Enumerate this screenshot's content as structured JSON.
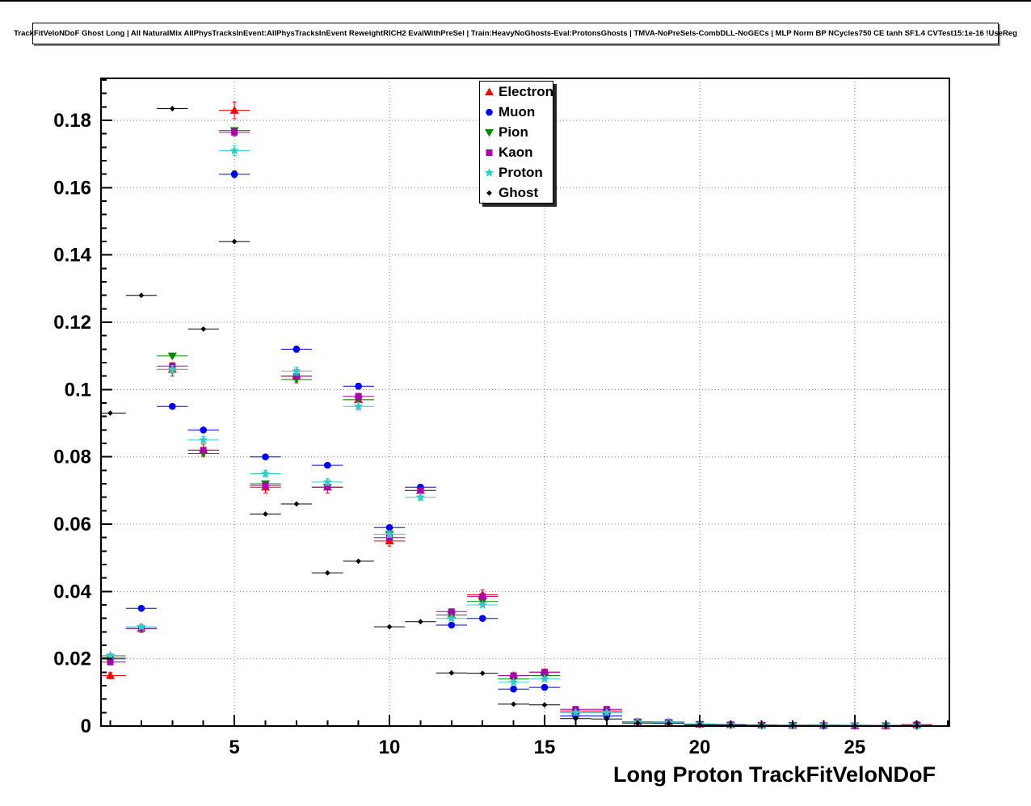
{
  "title": "TrackFitVeloNDoF Ghost Long | All NaturalMix AllPhysTracksInEvent:AllPhysTracksInEvent ReweightRICH2 EvalWithPreSel | Train:HeavyNoGhosts-Eval:ProtonsGhosts | TMVA-NoPreSels-CombDLL-NoGECs | MLP Norm BP NCycles750 CE tanh SF1.4 CVTest15:1e-16 !UseReg",
  "chart_data": {
    "type": "scatter",
    "title": "TrackFitVeloNDoF Ghost Long",
    "xlabel": "Long Proton TrackFitVeloNDoF",
    "ylabel": "",
    "xlim": [
      0.7,
      28.05
    ],
    "ylim": [
      0,
      0.1925
    ],
    "grid": true,
    "legend_position": "top-center",
    "bin_width": 1,
    "x_ticks": [
      5,
      10,
      15,
      20,
      25
    ],
    "y_ticks": {
      "values": [
        0,
        0.02,
        0.04,
        0.06,
        0.08,
        0.1,
        0.12,
        0.14,
        0.16,
        0.18
      ],
      "labels": [
        "0",
        "0.02",
        "0.04",
        "0.06",
        "0.08",
        "0.1",
        "0.12",
        "0.14",
        "0.16",
        "0.18"
      ]
    },
    "x": [
      1,
      2,
      3,
      4,
      5,
      6,
      7,
      8,
      9,
      10,
      11,
      12,
      13,
      14,
      15,
      16,
      17,
      18,
      19,
      20,
      21,
      22,
      23,
      24,
      25,
      26,
      27
    ],
    "series": [
      {
        "name": "Electron",
        "color": "#ff0000",
        "marker": "triangle-up",
        "values": [
          0.015,
          0.029,
          0.106,
          0.082,
          0.183,
          0.071,
          0.104,
          0.071,
          0.097,
          0.055,
          0.07,
          0.033,
          0.039,
          0.015,
          0.016,
          0.0045,
          0.0045,
          0.0012,
          0.0012,
          0.0005,
          0.0004,
          0.0003,
          0.0002,
          0.0002,
          0.0001,
          0.0001,
          0.0004
        ],
        "yerr": [
          0.0009,
          0.0012,
          0.002,
          0.0018,
          0.0025,
          0.0017,
          0.002,
          0.0017,
          0.0019,
          0.0015,
          0.0017,
          0.0012,
          0.0015,
          0.0008,
          0.0009,
          0.0005,
          0.0005,
          0.0003,
          0.0003,
          0.0002,
          0.0002,
          0.0001,
          0.0001,
          0.0001,
          0.0001,
          0.0001,
          0.0003
        ]
      },
      {
        "name": "Muon",
        "color": "#0000ff",
        "marker": "circle",
        "values": [
          0.02,
          0.035,
          0.095,
          0.088,
          0.164,
          0.08,
          0.112,
          0.0775,
          0.101,
          0.059,
          0.071,
          0.03,
          0.032,
          0.011,
          0.0115,
          0.003,
          0.003,
          0.0012,
          0.0012,
          0.0006,
          0.0004,
          0.0003,
          0.0002,
          0.0001,
          0.0001,
          0.0001,
          0.0001
        ],
        "yerr": [
          0.0004,
          0.0005,
          0.0008,
          0.0008,
          0.001,
          0.0008,
          0.0009,
          0.0008,
          0.0009,
          0.0007,
          0.0008,
          0.0005,
          0.0005,
          0.0003,
          0.0003,
          0.0002,
          0.0002,
          0.0001,
          0.0001,
          0.0001,
          0.0001,
          0.0001,
          0.0001,
          0.0001,
          0.0001,
          0.0001,
          0.0001
        ]
      },
      {
        "name": "Pion",
        "color": "#008800",
        "marker": "triangle-down",
        "values": [
          0.0205,
          0.029,
          0.11,
          0.081,
          0.177,
          0.072,
          0.103,
          0.071,
          0.097,
          0.057,
          0.07,
          0.033,
          0.037,
          0.014,
          0.015,
          0.004,
          0.004,
          0.0012,
          0.001,
          0.0005,
          0.0003,
          0.0002,
          0.0002,
          0.0001,
          0.0001,
          0.0001,
          0.0001
        ],
        "yerr": [
          0.0003,
          0.0003,
          0.0005,
          0.0005,
          0.0006,
          0.0005,
          0.0005,
          0.0005,
          0.0005,
          0.0004,
          0.0004,
          0.0003,
          0.0003,
          0.0002,
          0.0002,
          0.0001,
          0.0001,
          0.0001,
          0.0001,
          0.0001,
          0.0001,
          0.0001,
          0.0001,
          0.0001,
          0.0001,
          0.0001,
          0.0001
        ]
      },
      {
        "name": "Kaon",
        "color": "#aa00aa",
        "marker": "square",
        "values": [
          0.019,
          0.029,
          0.107,
          0.082,
          0.1765,
          0.0715,
          0.104,
          0.071,
          0.098,
          0.056,
          0.07,
          0.034,
          0.0385,
          0.015,
          0.016,
          0.005,
          0.005,
          0.0013,
          0.0011,
          0.0005,
          0.0004,
          0.0003,
          0.0002,
          0.0002,
          0.0001,
          0.0001,
          0.0004
        ],
        "yerr": [
          0.0005,
          0.0006,
          0.0009,
          0.0008,
          0.0011,
          0.0008,
          0.0009,
          0.0008,
          0.0009,
          0.0007,
          0.0008,
          0.0006,
          0.0007,
          0.0004,
          0.0005,
          0.0003,
          0.0003,
          0.0002,
          0.0002,
          0.0001,
          0.0001,
          0.0001,
          0.0001,
          0.0001,
          0.0001,
          0.0001,
          0.0002
        ]
      },
      {
        "name": "Proton",
        "color": "#33cccc",
        "marker": "star",
        "values": [
          0.021,
          0.0295,
          0.106,
          0.085,
          0.171,
          0.075,
          0.1055,
          0.0725,
          0.095,
          0.057,
          0.068,
          0.032,
          0.036,
          0.013,
          0.014,
          0.004,
          0.004,
          0.0012,
          0.0011,
          0.0006,
          0.0004,
          0.0003,
          0.0003,
          0.0004,
          0.0004,
          0.0003,
          0.0001
        ],
        "yerr": [
          0.0006,
          0.0007,
          0.0012,
          0.0011,
          0.0014,
          0.001,
          0.0012,
          0.001,
          0.0011,
          0.0009,
          0.001,
          0.0007,
          0.0008,
          0.0005,
          0.0005,
          0.0003,
          0.0003,
          0.0002,
          0.0002,
          0.0001,
          0.0001,
          0.0001,
          0.0001,
          0.0002,
          0.0002,
          0.0002,
          0.0001
        ]
      },
      {
        "name": "Ghost",
        "color": "#000000",
        "marker": "diamond",
        "values": [
          0.093,
          0.128,
          0.1835,
          0.118,
          0.144,
          0.063,
          0.066,
          0.0455,
          0.049,
          0.0295,
          0.031,
          0.0158,
          0.0157,
          0.0065,
          0.0063,
          0.0022,
          0.0021,
          0.0009,
          0.0008,
          0.0004,
          0.0003,
          0.0002,
          0.0002,
          0.0001,
          0.0001,
          0.0001,
          0.0001
        ],
        "yerr": [
          0.0006,
          0.0007,
          0.0008,
          0.0007,
          0.0007,
          0.0005,
          0.0005,
          0.0004,
          0.0004,
          0.0003,
          0.0003,
          0.0002,
          0.0002,
          0.0002,
          0.0002,
          0.0001,
          0.0001,
          0.0001,
          0.0001,
          0.0001,
          0.0001,
          0.0001,
          0.0001,
          0.0001,
          0.0001,
          0.0001,
          0.0001
        ]
      }
    ]
  }
}
